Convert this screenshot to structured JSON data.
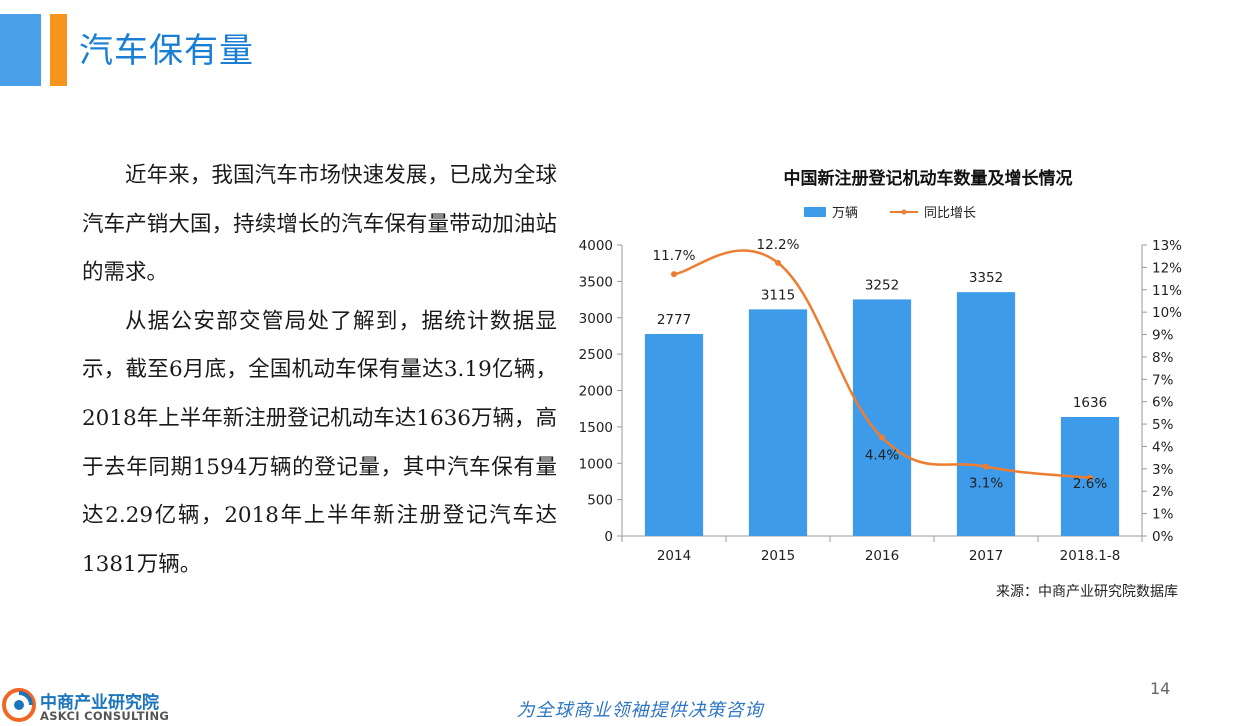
{
  "header": {
    "title": "汽车保有量"
  },
  "body": {
    "paragraphs": [
      "近年来，我国汽车市场快速发展，已成为全球汽车产销大国，持续增长的汽车保有量带动加油站的需求。",
      "从据公安部交管局处了解到，据统计数据显示，截至6月底，全国机动车保有量达3.19亿辆，2018年上半年新注册登记机动车达1636万辆，高于去年同期1594万辆的登记量，其中汽车保有量达2.29亿辆，2018年上半年新注册登记汽车达1381万辆。"
    ]
  },
  "chart_data": {
    "type": "bar",
    "title": "中国新注册登记机动车数量及增长情况",
    "categories": [
      "2014",
      "2015",
      "2016",
      "2017",
      "2018.1-8"
    ],
    "series": [
      {
        "name": "万辆",
        "type": "bar",
        "axis": "left",
        "color": "#3d9be9",
        "values": [
          2777,
          3115,
          3252,
          3352,
          1636
        ],
        "labels": [
          "2777",
          "3115",
          "3252",
          "3352",
          "1636"
        ]
      },
      {
        "name": "同比增长",
        "type": "line",
        "axis": "right",
        "color": "#ed7d31",
        "values": [
          11.7,
          12.2,
          4.4,
          3.1,
          2.6
        ],
        "labels": [
          "11.7%",
          "12.2%",
          "4.4%",
          "3.1%",
          "2.6%"
        ]
      }
    ],
    "y_left": {
      "min": 0,
      "max": 4000,
      "step": 500,
      "ticks": [
        "0",
        "500",
        "1000",
        "1500",
        "2000",
        "2500",
        "3000",
        "3500",
        "4000"
      ]
    },
    "y_right": {
      "min": 0,
      "max": 13,
      "step": 1,
      "ticks": [
        "0%",
        "1%",
        "2%",
        "3%",
        "4%",
        "5%",
        "6%",
        "7%",
        "8%",
        "9%",
        "10%",
        "11%",
        "12%",
        "13%"
      ]
    },
    "legend_position": "top",
    "grid": false
  },
  "footer": {
    "source": "来源：中商产业研究院数据库",
    "page_number": "14",
    "slogan": "为全球商业领袖提供决策咨询",
    "logo_cn": "中商产业研究院",
    "logo_en": "ASKCI CONSULTING"
  },
  "colors": {
    "accent_blue": "#4a9fe9",
    "accent_orange": "#f7941d",
    "title_text": "#1a7fd4",
    "slogan_text": "#2e75c4",
    "logo_orange": "#f26522",
    "logo_blue": "#1b75bb"
  },
  "icons": {
    "logo": "askci-logo-icon"
  }
}
